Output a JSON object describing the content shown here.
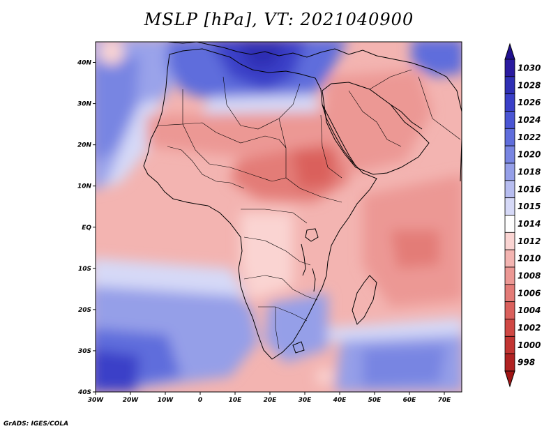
{
  "title": "MSLP [hPa], VT: 2021040900",
  "credit": "GrADS: IGES/COLA",
  "map": {
    "lon_range": [
      -30,
      75
    ],
    "lat_range": [
      -40,
      45
    ],
    "lon_ticks": [
      {
        "v": -30,
        "label": "30W"
      },
      {
        "v": -20,
        "label": "20W"
      },
      {
        "v": -10,
        "label": "10W"
      },
      {
        "v": 0,
        "label": "0"
      },
      {
        "v": 10,
        "label": "10E"
      },
      {
        "v": 20,
        "label": "20E"
      },
      {
        "v": 30,
        "label": "30E"
      },
      {
        "v": 40,
        "label": "40E"
      },
      {
        "v": 50,
        "label": "50E"
      },
      {
        "v": 60,
        "label": "60E"
      },
      {
        "v": 70,
        "label": "70E"
      }
    ],
    "lat_ticks": [
      {
        "v": 40,
        "label": "40N"
      },
      {
        "v": 30,
        "label": "30N"
      },
      {
        "v": 20,
        "label": "20N"
      },
      {
        "v": 10,
        "label": "10N"
      },
      {
        "v": 0,
        "label": "EQ"
      },
      {
        "v": -10,
        "label": "10S"
      },
      {
        "v": -20,
        "label": "20S"
      },
      {
        "v": -30,
        "label": "30S"
      },
      {
        "v": -40,
        "label": "40S"
      }
    ]
  },
  "colorbar": {
    "levels": [
      {
        "label": "1030",
        "color": "#2a1aa0"
      },
      {
        "label": "1028",
        "color": "#2f2fb4"
      },
      {
        "label": "1026",
        "color": "#3a3fc8"
      },
      {
        "label": "1024",
        "color": "#4a55d4"
      },
      {
        "label": "1022",
        "color": "#5f6ddc"
      },
      {
        "label": "1020",
        "color": "#7885e2"
      },
      {
        "label": "1018",
        "color": "#959fe8"
      },
      {
        "label": "1016",
        "color": "#b7bdf0"
      },
      {
        "label": "1015",
        "color": "#d6d9f7"
      },
      {
        "label": "1014",
        "color": "#ffffff"
      },
      {
        "label": "1012",
        "color": "#fad4d2"
      },
      {
        "label": "1010",
        "color": "#f3b4b1"
      },
      {
        "label": "1008",
        "color": "#ec9894"
      },
      {
        "label": "1006",
        "color": "#e37b77"
      },
      {
        "label": "1004",
        "color": "#da605c"
      },
      {
        "label": "1002",
        "color": "#d04844"
      },
      {
        "label": "1000",
        "color": "#c23532"
      },
      {
        "label": "998",
        "color": "#b02222"
      }
    ],
    "top_cap_color": "#20108f",
    "bottom_cap_color": "#a01414"
  },
  "colors": {
    "ocean_high": "#9aa3ea",
    "ocean_mid": "#c2c7f3",
    "land_border": "#000000"
  }
}
